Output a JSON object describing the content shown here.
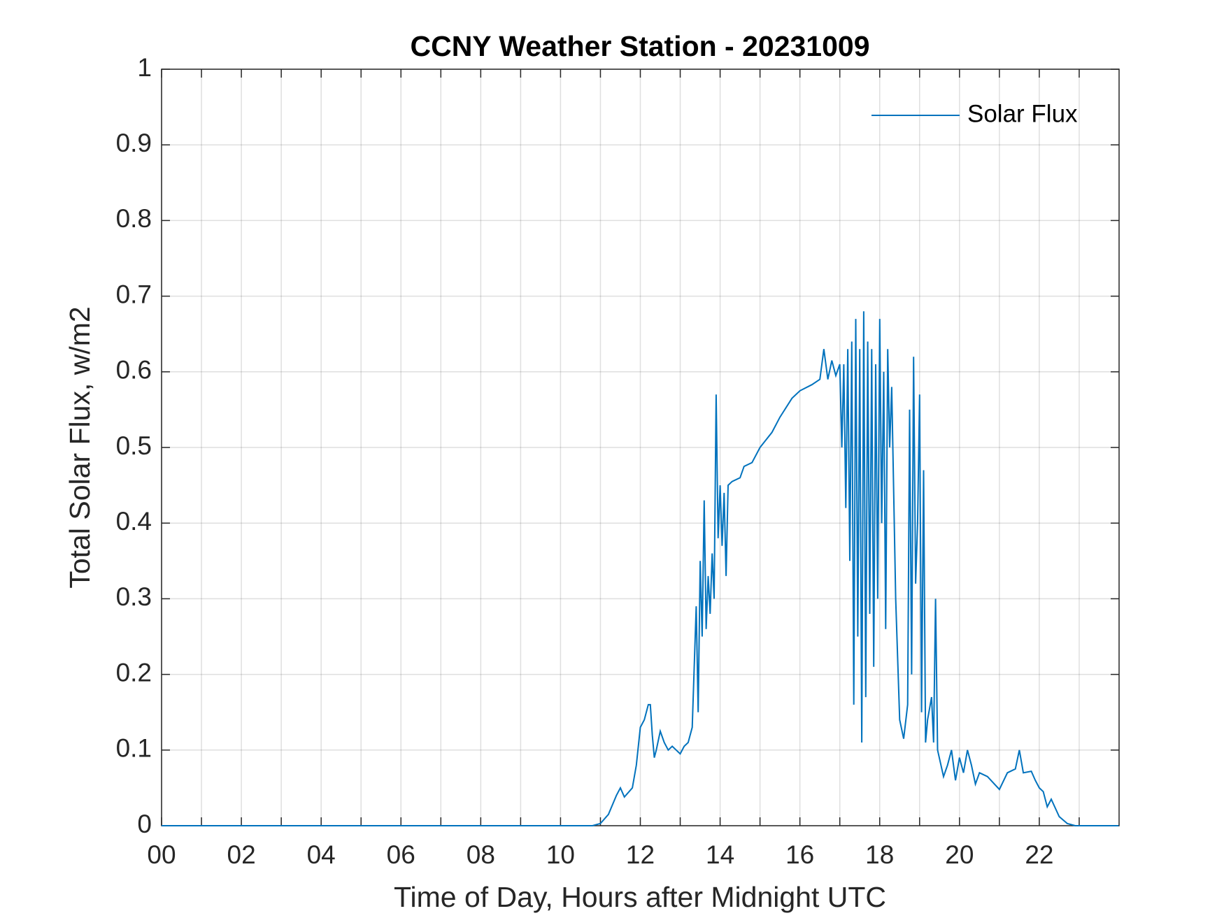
{
  "chart_data": {
    "type": "line",
    "title": "CCNY Weather Station - 20231009",
    "xlabel": "Time of Day, Hours after Midnight UTC",
    "ylabel": "Total Solar Flux, w/m2",
    "xlim": [
      0,
      24
    ],
    "ylim": [
      0,
      1
    ],
    "xticks": [
      {
        "value": 0,
        "label": "00"
      },
      {
        "value": 2,
        "label": "02"
      },
      {
        "value": 4,
        "label": "04"
      },
      {
        "value": 6,
        "label": "06"
      },
      {
        "value": 8,
        "label": "08"
      },
      {
        "value": 10,
        "label": "10"
      },
      {
        "value": 12,
        "label": "12"
      },
      {
        "value": 14,
        "label": "14"
      },
      {
        "value": 16,
        "label": "16"
      },
      {
        "value": 18,
        "label": "18"
      },
      {
        "value": 20,
        "label": "20"
      },
      {
        "value": 22,
        "label": "22"
      }
    ],
    "xminor_ticks": [
      1,
      3,
      5,
      7,
      9,
      11,
      13,
      15,
      17,
      19,
      21,
      23
    ],
    "yticks": [
      0,
      0.1,
      0.2,
      0.3,
      0.4,
      0.5,
      0.6,
      0.7,
      0.8,
      0.9,
      1
    ],
    "grid": true,
    "legend": "upper right",
    "series": [
      {
        "name": "Solar Flux",
        "color": "#0072bd",
        "x": [
          0,
          10.8,
          11.0,
          11.2,
          11.4,
          11.5,
          11.6,
          11.8,
          11.9,
          12.0,
          12.1,
          12.2,
          12.25,
          12.3,
          12.35,
          12.4,
          12.5,
          12.6,
          12.7,
          12.8,
          12.9,
          13.0,
          13.1,
          13.2,
          13.3,
          13.4,
          13.45,
          13.5,
          13.55,
          13.6,
          13.65,
          13.7,
          13.75,
          13.8,
          13.85,
          13.9,
          13.95,
          14.0,
          14.05,
          14.1,
          14.15,
          14.2,
          14.3,
          14.5,
          14.6,
          14.8,
          15.0,
          15.3,
          15.5,
          15.8,
          16.0,
          16.3,
          16.5,
          16.6,
          16.7,
          16.8,
          16.9,
          17.0,
          17.05,
          17.1,
          17.15,
          17.2,
          17.25,
          17.3,
          17.35,
          17.4,
          17.45,
          17.5,
          17.55,
          17.6,
          17.65,
          17.7,
          17.75,
          17.8,
          17.85,
          17.9,
          17.95,
          18.0,
          18.05,
          18.1,
          18.15,
          18.2,
          18.25,
          18.3,
          18.4,
          18.5,
          18.6,
          18.7,
          18.75,
          18.8,
          18.85,
          18.9,
          18.95,
          19.0,
          19.05,
          19.1,
          19.15,
          19.2,
          19.3,
          19.35,
          19.4,
          19.45,
          19.6,
          19.7,
          19.8,
          19.9,
          20.0,
          20.1,
          20.2,
          20.3,
          20.4,
          20.5,
          20.7,
          21.0,
          21.2,
          21.4,
          21.5,
          21.6,
          21.8,
          21.9,
          22.0,
          22.1,
          22.2,
          22.3,
          22.5,
          22.7,
          22.9,
          23.99
        ],
        "values": [
          0,
          0,
          0.003,
          0.015,
          0.04,
          0.05,
          0.038,
          0.05,
          0.08,
          0.13,
          0.14,
          0.16,
          0.16,
          0.12,
          0.09,
          0.1,
          0.125,
          0.11,
          0.1,
          0.105,
          0.1,
          0.095,
          0.105,
          0.11,
          0.13,
          0.29,
          0.15,
          0.35,
          0.25,
          0.43,
          0.26,
          0.33,
          0.28,
          0.36,
          0.3,
          0.57,
          0.38,
          0.45,
          0.37,
          0.44,
          0.33,
          0.45,
          0.455,
          0.46,
          0.475,
          0.48,
          0.5,
          0.52,
          0.54,
          0.565,
          0.575,
          0.583,
          0.59,
          0.63,
          0.59,
          0.615,
          0.595,
          0.61,
          0.5,
          0.61,
          0.42,
          0.63,
          0.35,
          0.64,
          0.16,
          0.67,
          0.25,
          0.63,
          0.11,
          0.68,
          0.17,
          0.64,
          0.28,
          0.63,
          0.21,
          0.61,
          0.3,
          0.67,
          0.4,
          0.6,
          0.26,
          0.63,
          0.5,
          0.58,
          0.3,
          0.14,
          0.115,
          0.16,
          0.55,
          0.2,
          0.62,
          0.32,
          0.4,
          0.57,
          0.15,
          0.47,
          0.11,
          0.14,
          0.17,
          0.11,
          0.3,
          0.1,
          0.065,
          0.08,
          0.1,
          0.06,
          0.09,
          0.07,
          0.1,
          0.08,
          0.055,
          0.07,
          0.065,
          0.048,
          0.07,
          0.075,
          0.1,
          0.07,
          0.072,
          0.06,
          0.05,
          0.045,
          0.025,
          0.035,
          0.012,
          0.003,
          0,
          0
        ]
      }
    ]
  }
}
